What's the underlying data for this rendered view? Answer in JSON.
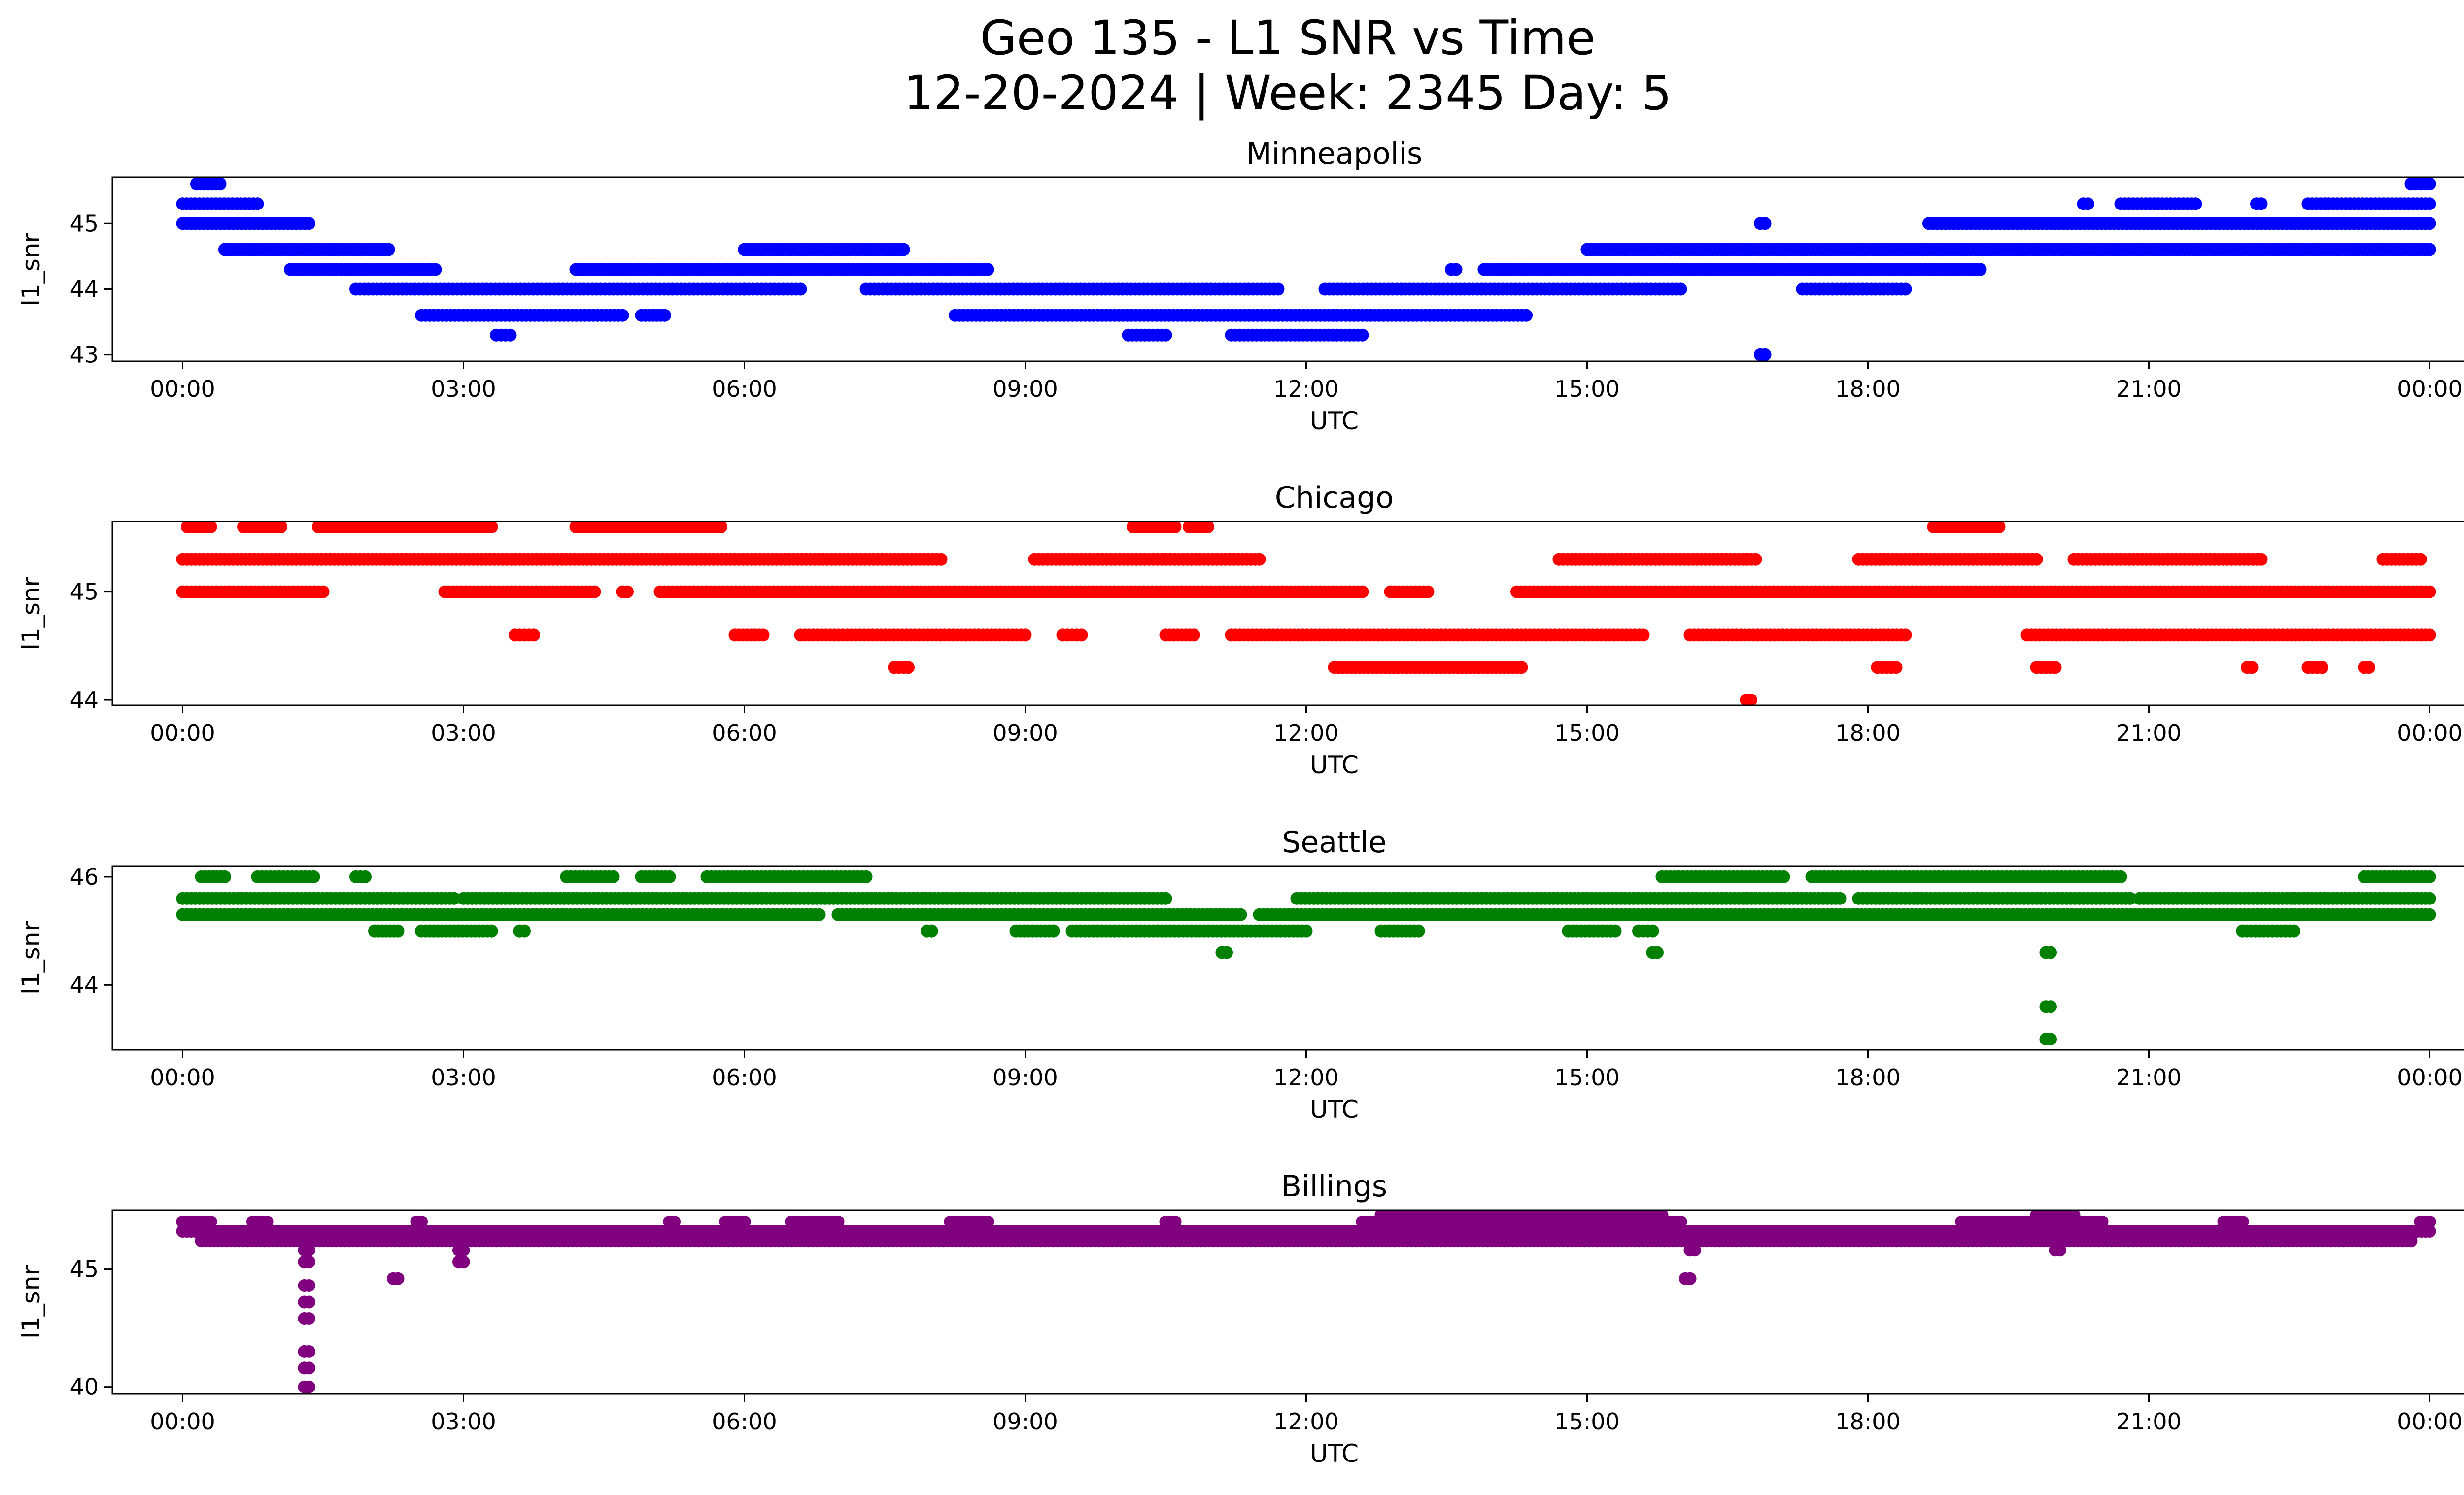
{
  "title_line1": "Geo 135 - L1 SNR vs Time",
  "title_line2": "12-20-2024 | Week: 2345 Day: 5",
  "chart_data": {
    "type": "scatter",
    "xlabel": "UTC",
    "ylabel": "l1_snr",
    "x_unit": "hours",
    "xticks": [
      0,
      3,
      6,
      9,
      12,
      15,
      18,
      21,
      24
    ],
    "xtick_labels": [
      "00:00",
      "03:00",
      "06:00",
      "09:00",
      "12:00",
      "15:00",
      "18:00",
      "21:00",
      "00:00"
    ],
    "panels": [
      {
        "title": "Minneapolis",
        "color": "#0000ff",
        "ylim": [
          42.9,
          45.7
        ],
        "yticks": [
          43,
          44,
          45
        ],
        "ytick_labels": [
          "43",
          "44",
          "45"
        ],
        "runs": [
          {
            "level": 45.3,
            "segments": [
              [
                0.0,
                0.8
              ]
            ]
          },
          {
            "level": 45.6,
            "segments": [
              [
                0.15,
                0.4
              ]
            ]
          },
          {
            "level": 45.0,
            "segments": [
              [
                0.0,
                1.35
              ]
            ]
          },
          {
            "level": 44.6,
            "segments": [
              [
                0.45,
                2.2
              ]
            ]
          },
          {
            "level": 44.3,
            "segments": [
              [
                1.15,
                2.7
              ]
            ]
          },
          {
            "level": 44.0,
            "segments": [
              [
                1.85,
                6.0
              ]
            ]
          },
          {
            "level": 43.6,
            "segments": [
              [
                2.55,
                4.7
              ],
              [
                4.9,
                5.15
              ]
            ]
          },
          {
            "level": 43.3,
            "segments": [
              [
                3.35,
                3.5
              ]
            ]
          },
          {
            "level": 44.3,
            "segments": [
              [
                4.2,
                8.6
              ]
            ]
          },
          {
            "level": 44.6,
            "segments": [
              [
                6.0,
                7.7
              ]
            ]
          },
          {
            "level": 44.0,
            "segments": [
              [
                6.0,
                6.6
              ],
              [
                7.3,
                11.7
              ],
              [
                12.2,
                16.0
              ]
            ]
          },
          {
            "level": 43.6,
            "segments": [
              [
                8.25,
                14.35
              ]
            ]
          },
          {
            "level": 43.3,
            "segments": [
              [
                10.1,
                10.5
              ],
              [
                11.2,
                12.6
              ]
            ]
          },
          {
            "level": 44.3,
            "segments": [
              [
                13.55,
                13.6
              ],
              [
                13.9,
                19.2
              ]
            ]
          },
          {
            "level": 44.6,
            "segments": [
              [
                15.0,
                24.0
              ]
            ]
          },
          {
            "level": 45.0,
            "segments": [
              [
                16.85,
                16.9
              ],
              [
                18.65,
                24.0
              ]
            ]
          },
          {
            "level": 44.0,
            "segments": [
              [
                17.3,
                18.4
              ]
            ]
          },
          {
            "level": 45.3,
            "segments": [
              [
                20.3,
                20.35
              ],
              [
                20.7,
                21.5
              ],
              [
                22.15,
                22.2
              ],
              [
                22.7,
                24.0
              ]
            ]
          },
          {
            "level": 45.6,
            "segments": [
              [
                23.8,
                24.0
              ]
            ]
          },
          {
            "level": 43.0,
            "segments": [
              [
                16.85,
                16.9
              ]
            ]
          }
        ]
      },
      {
        "title": "Chicago",
        "color": "#ff0000",
        "ylim": [
          43.95,
          45.65
        ],
        "yticks": [
          44,
          45
        ],
        "ytick_labels": [
          "44",
          "45"
        ],
        "runs": [
          {
            "level": 45.3,
            "segments": [
              [
                0.0,
                8.1
              ],
              [
                9.1,
                11.5
              ],
              [
                14.7,
                16.8
              ],
              [
                17.9,
                19.8
              ],
              [
                20.2,
                22.2
              ],
              [
                23.5,
                23.9
              ]
            ]
          },
          {
            "level": 45.6,
            "segments": [
              [
                0.05,
                0.3
              ],
              [
                0.65,
                1.05
              ],
              [
                1.45,
                3.3
              ],
              [
                4.2,
                5.75
              ],
              [
                10.15,
                10.6
              ],
              [
                10.75,
                10.95
              ],
              [
                18.7,
                19.4
              ]
            ]
          },
          {
            "level": 45.0,
            "segments": [
              [
                0.0,
                1.5
              ],
              [
                2.8,
                4.4
              ],
              [
                4.7,
                4.75
              ],
              [
                5.1,
                12.6
              ],
              [
                12.9,
                13.3
              ],
              [
                14.25,
                24.0
              ]
            ]
          },
          {
            "level": 44.6,
            "segments": [
              [
                3.55,
                3.75
              ],
              [
                5.9,
                6.2
              ],
              [
                6.6,
                9.0
              ],
              [
                9.4,
                9.6
              ],
              [
                10.5,
                10.8
              ],
              [
                11.2,
                15.6
              ],
              [
                16.1,
                18.4
              ],
              [
                19.7,
                24.0
              ]
            ]
          },
          {
            "level": 44.3,
            "segments": [
              [
                7.6,
                7.75
              ],
              [
                12.3,
                14.3
              ],
              [
                18.1,
                18.3
              ],
              [
                19.8,
                20.0
              ],
              [
                22.05,
                22.1
              ],
              [
                22.7,
                22.85
              ],
              [
                23.3,
                23.35
              ]
            ]
          },
          {
            "level": 44.0,
            "segments": [
              [
                16.7,
                16.75
              ]
            ]
          }
        ]
      },
      {
        "title": "Seattle",
        "color": "#008000",
        "ylim": [
          42.8,
          46.2
        ],
        "yticks": [
          44,
          46
        ],
        "ytick_labels": [
          "44",
          "46"
        ],
        "runs": [
          {
            "level": 45.3,
            "segments": [
              [
                0.0,
                6.8
              ],
              [
                7.0,
                11.3
              ],
              [
                11.5,
                24.0
              ]
            ]
          },
          {
            "level": 45.6,
            "segments": [
              [
                0.0,
                2.9
              ],
              [
                3.0,
                10.5
              ],
              [
                11.9,
                17.7
              ],
              [
                17.9,
                20.8
              ],
              [
                20.9,
                24.0
              ]
            ]
          },
          {
            "level": 46.0,
            "segments": [
              [
                0.2,
                0.45
              ],
              [
                0.8,
                1.4
              ],
              [
                1.85,
                1.95
              ],
              [
                4.1,
                4.6
              ],
              [
                4.9,
                5.2
              ],
              [
                5.6,
                7.3
              ],
              [
                15.8,
                17.1
              ],
              [
                17.4,
                20.7
              ],
              [
                23.3,
                24.0
              ]
            ]
          },
          {
            "level": 45.0,
            "segments": [
              [
                2.05,
                2.3
              ],
              [
                2.55,
                3.3
              ],
              [
                3.6,
                3.65
              ],
              [
                7.95,
                8.0
              ],
              [
                8.9,
                9.3
              ],
              [
                9.5,
                10.0
              ],
              [
                10.05,
                12.0
              ],
              [
                12.8,
                13.2
              ],
              [
                14.8,
                15.3
              ],
              [
                15.55,
                15.7
              ],
              [
                22.0,
                22.55
              ]
            ]
          },
          {
            "level": 44.6,
            "segments": [
              [
                11.1,
                11.15
              ],
              [
                15.7,
                15.75
              ],
              [
                19.9,
                19.95
              ]
            ]
          },
          {
            "level": 43.6,
            "segments": [
              [
                19.9,
                19.95
              ]
            ]
          },
          {
            "level": 43.0,
            "segments": [
              [
                19.9,
                19.95
              ]
            ]
          }
        ]
      },
      {
        "title": "Billings",
        "color": "#800080",
        "ylim": [
          39.7,
          47.5
        ],
        "yticks": [
          40,
          45
        ],
        "ytick_labels": [
          "40",
          "45"
        ],
        "runs": [
          {
            "level": 46.6,
            "segments": [
              [
                0.0,
                24.0
              ]
            ]
          },
          {
            "level": 46.2,
            "segments": [
              [
                0.2,
                23.8
              ]
            ]
          },
          {
            "level": 47.0,
            "segments": [
              [
                0.0,
                0.3
              ],
              [
                0.75,
                0.9
              ],
              [
                2.5,
                2.55
              ],
              [
                5.2,
                5.25
              ],
              [
                5.8,
                6.0
              ],
              [
                6.5,
                7.0
              ],
              [
                8.2,
                8.6
              ],
              [
                10.5,
                10.6
              ],
              [
                12.6,
                16.0
              ],
              [
                19.0,
                20.5
              ],
              [
                21.8,
                22.0
              ],
              [
                23.9,
                24.0
              ]
            ]
          },
          {
            "level": 47.3,
            "segments": [
              [
                12.8,
                15.8
              ],
              [
                19.8,
                20.2
              ]
            ]
          },
          {
            "level": 45.8,
            "segments": [
              [
                1.3,
                1.35
              ],
              [
                2.95,
                3.0
              ],
              [
                16.1,
                16.15
              ],
              [
                20.0,
                20.05
              ]
            ]
          },
          {
            "level": 45.3,
            "segments": [
              [
                1.3,
                1.35
              ],
              [
                2.95,
                3.0
              ]
            ]
          },
          {
            "level": 44.6,
            "segments": [
              [
                2.25,
                2.3
              ],
              [
                16.05,
                16.1
              ]
            ]
          },
          {
            "level": 44.3,
            "segments": [
              [
                1.3,
                1.35
              ]
            ]
          },
          {
            "level": 43.6,
            "segments": [
              [
                1.3,
                1.35
              ]
            ]
          },
          {
            "level": 42.9,
            "segments": [
              [
                1.3,
                1.35
              ]
            ]
          },
          {
            "level": 41.5,
            "segments": [
              [
                1.3,
                1.35
              ]
            ]
          },
          {
            "level": 40.8,
            "segments": [
              [
                1.3,
                1.35
              ]
            ]
          },
          {
            "level": 40.0,
            "segments": [
              [
                1.3,
                1.35
              ]
            ]
          }
        ]
      }
    ]
  }
}
